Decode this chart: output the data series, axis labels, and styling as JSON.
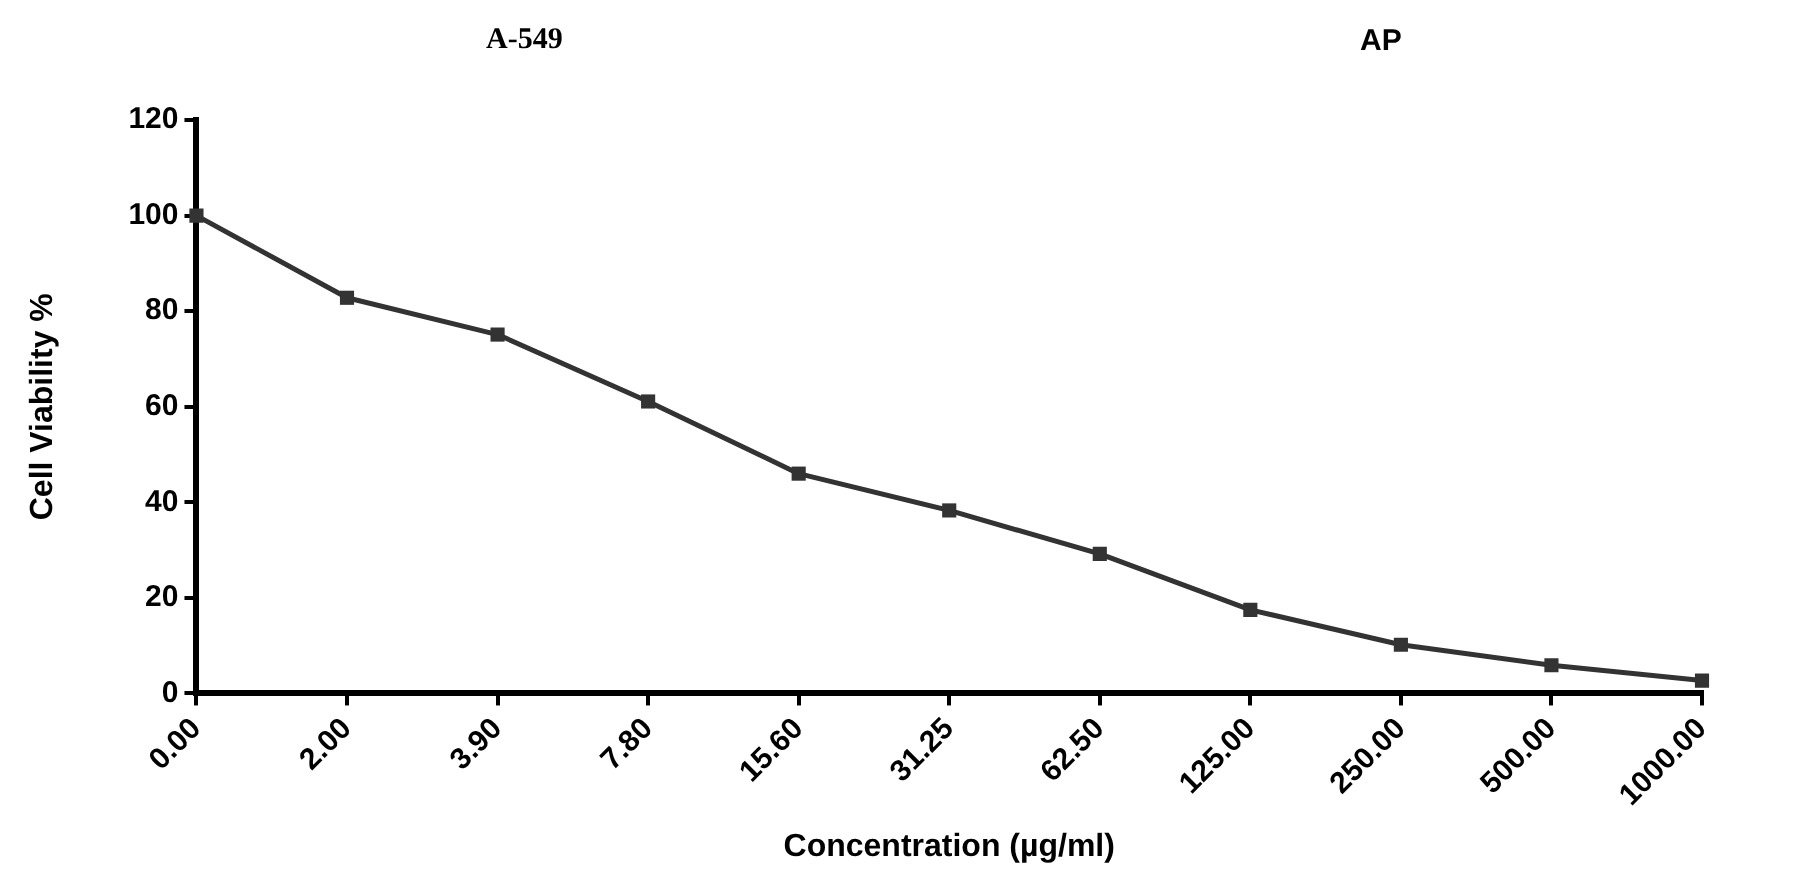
{
  "chart_data": {
    "type": "line",
    "title": "A-549",
    "subtitle": "AP",
    "xlabel": "Concentration (µg/ml)",
    "ylabel": "Cell Viability %",
    "categories": [
      "0.00",
      "2.00",
      "3.90",
      "7.80",
      "15.60",
      "31.25",
      "62.50",
      "125.00",
      "250.00",
      "500.00",
      "1000.00"
    ],
    "series": [
      {
        "color": "#333333",
        "values": [
          100,
          82.8,
          75.1,
          61.1,
          46.0,
          38.3,
          29.2,
          17.5,
          10.2,
          5.9,
          2.7
        ]
      }
    ],
    "ylim": [
      0,
      120
    ],
    "yticks": [
      0,
      20,
      40,
      60,
      80,
      100,
      120
    ],
    "grid": false,
    "legend": false,
    "marker": "square",
    "line_style": "solid"
  }
}
